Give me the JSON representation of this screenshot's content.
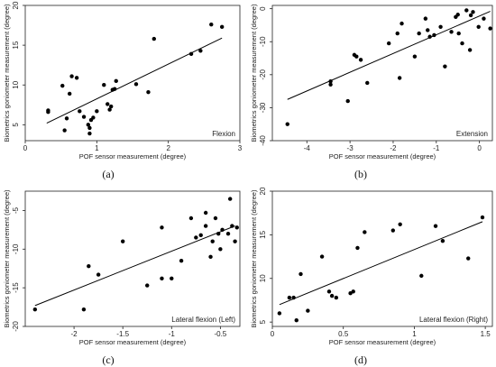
{
  "chart_data": [
    {
      "type": "scatter",
      "panel_label": "(a)",
      "annotation": "Flexion",
      "xlabel": "POF sensor measurement (degree)",
      "ylabel": "Biometrics goniometer measurement (degree)",
      "xlim": [
        0,
        3
      ],
      "ylim": [
        3,
        20
      ],
      "xticks": [
        0,
        1,
        2,
        3
      ],
      "yticks": [
        5,
        10,
        15,
        20
      ],
      "points": [
        [
          0.32,
          6.8
        ],
        [
          0.32,
          6.6
        ],
        [
          0.52,
          9.9
        ],
        [
          0.55,
          4.3
        ],
        [
          0.58,
          5.8
        ],
        [
          0.62,
          8.9
        ],
        [
          0.65,
          11.1
        ],
        [
          0.72,
          10.9
        ],
        [
          0.76,
          6.7
        ],
        [
          0.82,
          6.0
        ],
        [
          0.88,
          5.0
        ],
        [
          0.9,
          4.6
        ],
        [
          0.9,
          3.9
        ],
        [
          0.92,
          5.6
        ],
        [
          0.95,
          5.9
        ],
        [
          1.0,
          6.7
        ],
        [
          1.1,
          10.0
        ],
        [
          1.15,
          7.6
        ],
        [
          1.18,
          6.9
        ],
        [
          1.2,
          7.3
        ],
        [
          1.22,
          9.4
        ],
        [
          1.25,
          9.5
        ],
        [
          1.27,
          10.5
        ],
        [
          1.55,
          10.1
        ],
        [
          1.72,
          9.1
        ],
        [
          1.8,
          15.8
        ],
        [
          2.32,
          13.9
        ],
        [
          2.45,
          14.3
        ],
        [
          2.6,
          17.6
        ],
        [
          2.75,
          17.3
        ]
      ],
      "fit": [
        [
          0.3,
          5.2
        ],
        [
          2.75,
          15.9
        ]
      ]
    },
    {
      "type": "scatter",
      "panel_label": "(b)",
      "annotation": "Extension",
      "xlabel": "POF sensor measurement (degree)",
      "ylabel": "Biometrics goniometer measurement (degree)",
      "xlim": [
        -4.8,
        0.3
      ],
      "ylim": [
        -40,
        1
      ],
      "xticks": [
        -4,
        -3,
        -2,
        -1,
        0
      ],
      "yticks": [
        0,
        -10,
        -20,
        -30,
        -40
      ],
      "points": [
        [
          -4.45,
          -35.0
        ],
        [
          -3.45,
          -22.0
        ],
        [
          -3.45,
          -23.0
        ],
        [
          -3.05,
          -28.0
        ],
        [
          -2.9,
          -14.0
        ],
        [
          -2.85,
          -14.5
        ],
        [
          -2.75,
          -15.5
        ],
        [
          -2.6,
          -22.5
        ],
        [
          -2.1,
          -10.5
        ],
        [
          -1.9,
          -7.5
        ],
        [
          -1.85,
          -21.0
        ],
        [
          -1.8,
          -4.5
        ],
        [
          -1.5,
          -14.5
        ],
        [
          -1.4,
          -7.5
        ],
        [
          -1.25,
          -3.0
        ],
        [
          -1.2,
          -6.5
        ],
        [
          -1.15,
          -8.5
        ],
        [
          -1.05,
          -8.0
        ],
        [
          -0.9,
          -5.5
        ],
        [
          -0.8,
          -17.5
        ],
        [
          -0.65,
          -7.0
        ],
        [
          -0.55,
          -2.5
        ],
        [
          -0.5,
          -1.8
        ],
        [
          -0.48,
          -7.5
        ],
        [
          -0.4,
          -10.5
        ],
        [
          -0.3,
          -0.5
        ],
        [
          -0.22,
          -12.5
        ],
        [
          -0.2,
          -2.0
        ],
        [
          -0.15,
          -1.0
        ],
        [
          -0.02,
          -5.5
        ],
        [
          0.1,
          -3.0
        ],
        [
          0.25,
          -6.0
        ]
      ],
      "fit": [
        [
          -4.45,
          -27.5
        ],
        [
          0.25,
          -0.8
        ]
      ]
    },
    {
      "type": "scatter",
      "panel_label": "(c)",
      "annotation": "Lateral flexion (Left)",
      "xlabel": "POF sensor measurement (degree)",
      "ylabel": "Biometrics goniometer measurement (degree)",
      "xlim": [
        -2.5,
        -0.3
      ],
      "ylim": [
        -20,
        -2.5
      ],
      "xticks": [
        -2,
        -1.5,
        -1,
        -0.5
      ],
      "yticks": [
        -5,
        -10,
        -15,
        -20
      ],
      "points": [
        [
          -2.4,
          -17.8
        ],
        [
          -1.9,
          -17.8
        ],
        [
          -1.85,
          -12.2
        ],
        [
          -1.75,
          -13.3
        ],
        [
          -1.5,
          -9.0
        ],
        [
          -1.25,
          -14.7
        ],
        [
          -1.1,
          -7.2
        ],
        [
          -1.1,
          -13.8
        ],
        [
          -1.0,
          -13.8
        ],
        [
          -0.9,
          -11.5
        ],
        [
          -0.8,
          -6.0
        ],
        [
          -0.75,
          -8.5
        ],
        [
          -0.7,
          -8.2
        ],
        [
          -0.65,
          -5.3
        ],
        [
          -0.65,
          -7.0
        ],
        [
          -0.6,
          -11.0
        ],
        [
          -0.58,
          -9.0
        ],
        [
          -0.55,
          -6.0
        ],
        [
          -0.52,
          -8.0
        ],
        [
          -0.5,
          -10.0
        ],
        [
          -0.48,
          -7.5
        ],
        [
          -0.42,
          -8.0
        ],
        [
          -0.4,
          -3.5
        ],
        [
          -0.38,
          -7.0
        ],
        [
          -0.35,
          -9.0
        ],
        [
          -0.33,
          -7.2
        ]
      ],
      "fit": [
        [
          -2.4,
          -17.3
        ],
        [
          -0.35,
          -7.0
        ]
      ]
    },
    {
      "type": "scatter",
      "panel_label": "(d)",
      "annotation": "Lateral flexion (Right)",
      "xlabel": "POF sensor measurement (degree)",
      "ylabel": "Biometrics goniometer measurement (degree)",
      "xlim": [
        0,
        1.55
      ],
      "ylim": [
        4.5,
        20
      ],
      "xticks": [
        0,
        0.5,
        1,
        1.5
      ],
      "yticks": [
        5,
        10,
        15,
        20
      ],
      "points": [
        [
          0.05,
          6.0
        ],
        [
          0.12,
          7.8
        ],
        [
          0.15,
          7.8
        ],
        [
          0.17,
          5.2
        ],
        [
          0.2,
          10.5
        ],
        [
          0.25,
          6.3
        ],
        [
          0.35,
          12.5
        ],
        [
          0.4,
          8.5
        ],
        [
          0.42,
          8.0
        ],
        [
          0.45,
          7.8
        ],
        [
          0.55,
          8.3
        ],
        [
          0.57,
          8.5
        ],
        [
          0.6,
          13.5
        ],
        [
          0.65,
          15.3
        ],
        [
          0.85,
          15.5
        ],
        [
          0.9,
          16.2
        ],
        [
          1.05,
          10.3
        ],
        [
          1.15,
          16.0
        ],
        [
          1.2,
          14.3
        ],
        [
          1.38,
          12.3
        ],
        [
          1.48,
          17.0
        ]
      ],
      "fit": [
        [
          0.05,
          7.0
        ],
        [
          1.48,
          16.5
        ]
      ]
    }
  ]
}
